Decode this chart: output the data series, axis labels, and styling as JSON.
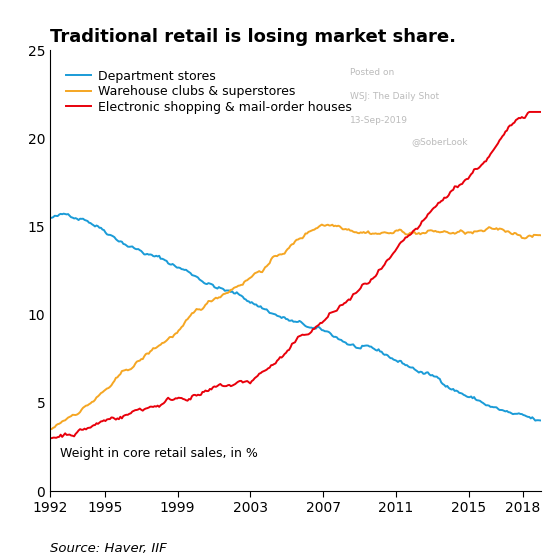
{
  "title": "Traditional retail is losing market share.",
  "title_fontsize": 13,
  "xlabel_bottom": "Source: Haver, IIF",
  "ylabel_text": "Weight in core retail sales, in %",
  "watermark_line1": "Posted on",
  "watermark_line2": "WSJ: The Daily Shot",
  "watermark_line3": "13-Sep-2019",
  "watermark_handle": "@SoberLook",
  "ylim": [
    0,
    25
  ],
  "yticks": [
    0,
    5,
    10,
    15,
    20,
    25
  ],
  "xticks": [
    1992,
    1995,
    1999,
    2003,
    2007,
    2011,
    2015,
    2018
  ],
  "color_dept": "#1a9bd7",
  "color_warehouse": "#f5a623",
  "color_electronic": "#e8000b",
  "legend_labels": [
    "Department stores",
    "Warehouse clubs & superstores",
    "Electronic shopping & mail-order houses"
  ],
  "background_color": "#ffffff",
  "line_width": 1.4
}
